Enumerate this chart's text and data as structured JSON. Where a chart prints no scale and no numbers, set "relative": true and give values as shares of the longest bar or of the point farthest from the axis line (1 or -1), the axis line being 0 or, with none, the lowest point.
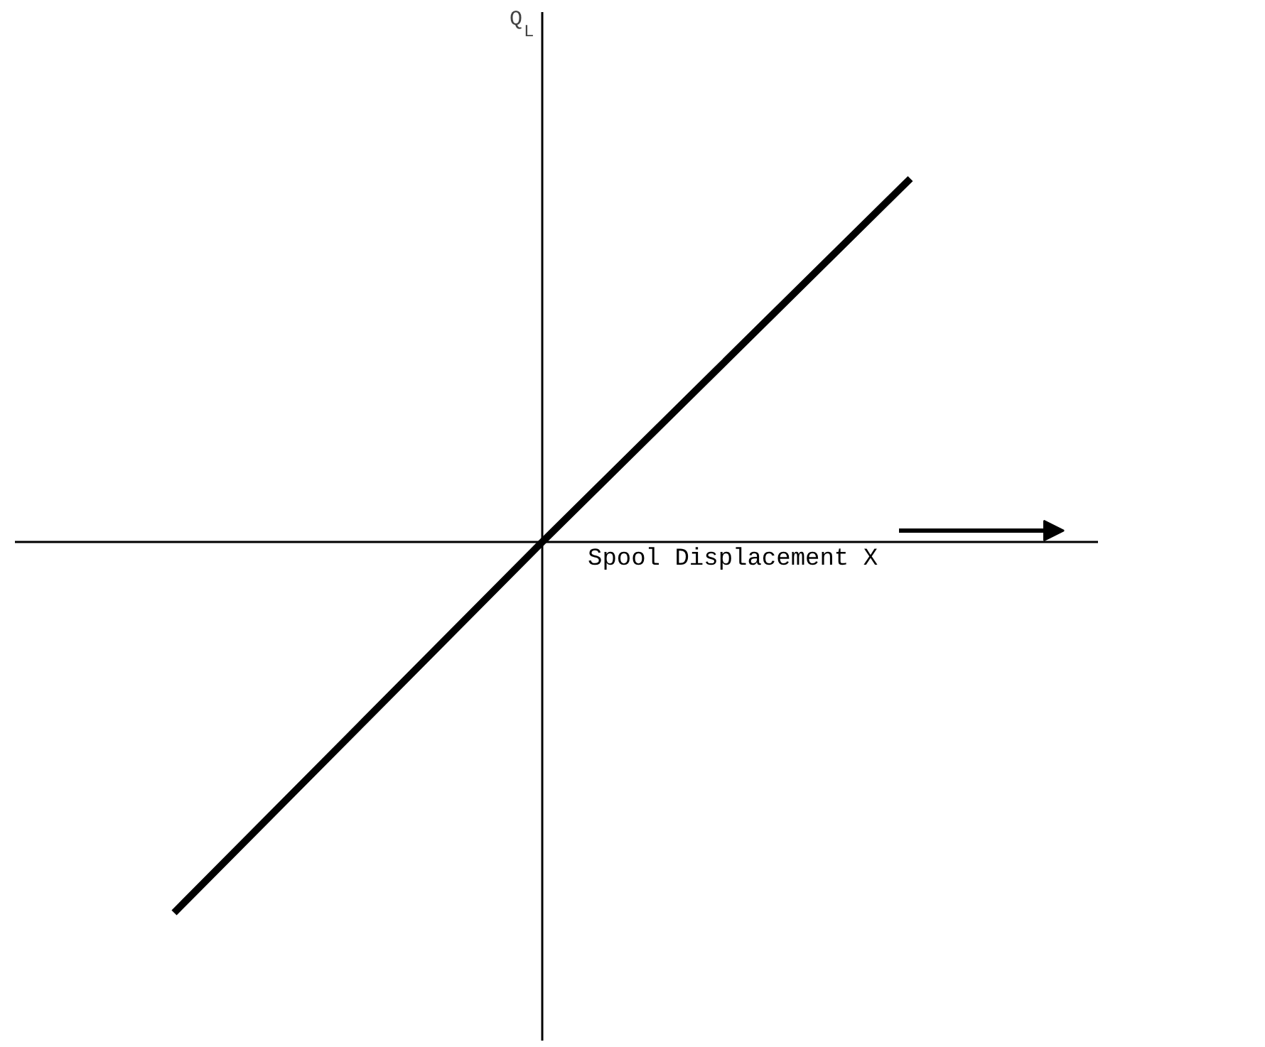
{
  "chart_data": {
    "type": "line",
    "relative": true,
    "xlabel": "Spool Displacement  X",
    "annotations": [
      "Q$_{L}$"
    ],
    "categories": [
      null,
      null,
      null
    ],
    "series": [
      {
        "color": "#000000",
        "values": [
          -1,
          0,
          0.98
        ]
      }
    ],
    "grid": false,
    "marker": "none",
    "line_style": "solid"
  }
}
